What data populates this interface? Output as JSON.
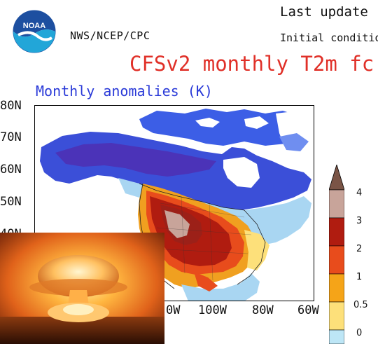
{
  "header": {
    "org": "NWS/NCEP/CPC",
    "last_update": "Last update",
    "initial_conditions": "Initial condition",
    "title": "CFSv2 monthly T2m fc",
    "subtitle": "Monthly anomalies (K)",
    "logo_text": "NOAA"
  },
  "map": {
    "lat_labels": [
      "80N",
      "70N",
      "60N",
      "50N",
      "40N"
    ],
    "lon_labels": [
      "0W",
      "100W",
      "80W",
      "60W"
    ]
  },
  "colorbar": {
    "labels": [
      "4",
      "3",
      "2",
      "1",
      "0.5",
      "0"
    ],
    "colors": [
      "#9c6a58",
      "#c8a49a",
      "#b01c10",
      "#e84c1c",
      "#f5a418",
      "#fde07a",
      "#bde6f6"
    ]
  },
  "overlay": {
    "image": "mushroom-cloud-photo"
  }
}
